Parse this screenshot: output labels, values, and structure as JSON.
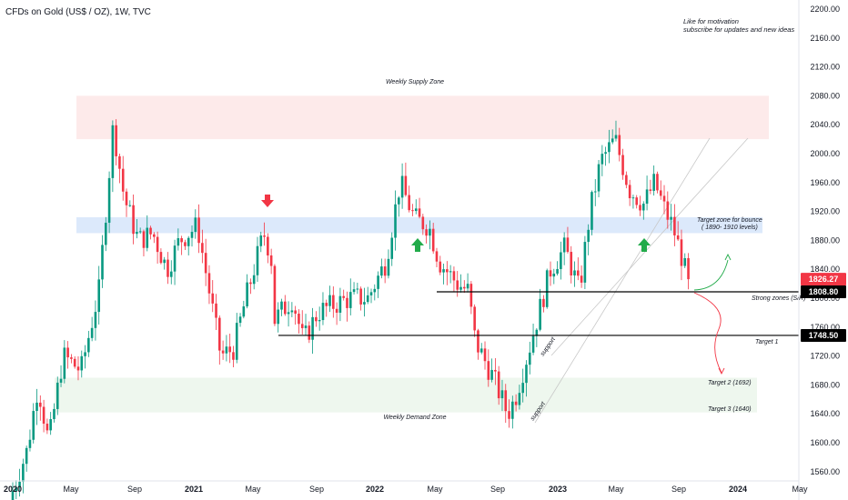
{
  "title": "CFDs on Gold (US$ / OZ), 1W, TVC",
  "notes": [
    "Like for motivation",
    "subscribe for updates and new ideas"
  ],
  "chart_data": {
    "type": "candlestick",
    "title": "CFDs on Gold (US$ / OZ), 1W, TVC",
    "ylim": [
      1540,
      2210
    ],
    "y_ticks": [
      1560,
      1600,
      1640,
      1680,
      1720,
      1760,
      1800,
      1840,
      1880,
      1920,
      1960,
      2000,
      2040,
      2080,
      2120,
      2160,
      2200
    ],
    "x_ticks": [
      "2020",
      "May",
      "Sep",
      "2021",
      "May",
      "Sep",
      "2022",
      "May",
      "Sep",
      "2023",
      "May",
      "Sep",
      "2024",
      "May"
    ],
    "x_ticks_bold": [
      "2020",
      "2021",
      "2022",
      "2023",
      "2024"
    ],
    "price_labels": [
      {
        "value": 1826.27,
        "text": "1826.27",
        "color": "#f23645"
      },
      {
        "value": 1808.8,
        "text": "1808.80",
        "color": "#000000"
      },
      {
        "value": 1748.5,
        "text": "1748.50",
        "color": "#000000"
      }
    ],
    "zones": [
      {
        "label": "Weekly Supply Zone",
        "from": 2020,
        "to": 2080,
        "color": "#fdeaea"
      },
      {
        "label": "",
        "from": 1890,
        "to": 1912,
        "color": "#dce9fb"
      },
      {
        "label": "Weekly Demand Zone",
        "from": 1642,
        "to": 1690,
        "color": "#eef7ee"
      }
    ],
    "levels": [
      {
        "value": 1808.8,
        "label": "Strong zones (S/R)"
      },
      {
        "value": 1748.5,
        "label": "Target 1"
      }
    ],
    "annotations": [
      "Target zone for bounce",
      "( 1890- 1910 levels)",
      "Target 2 (1692)",
      "Target 3 (1640)",
      "support",
      "support"
    ],
    "last_price": 1826.27,
    "colors": {
      "up": "#089981",
      "down": "#f23645",
      "arrow_up": "#22ab4a",
      "arrow_down": "#f23645"
    }
  }
}
